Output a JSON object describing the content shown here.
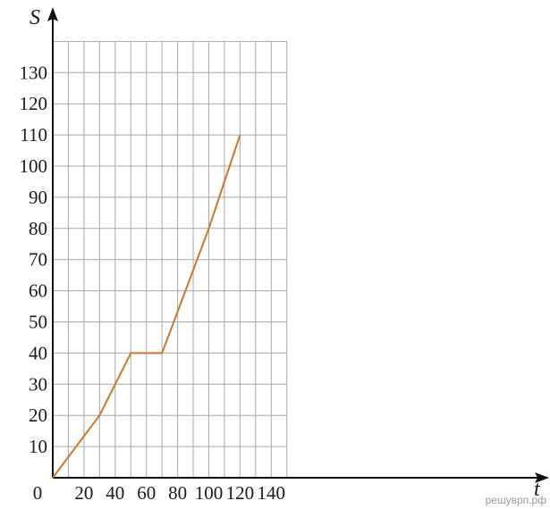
{
  "chart_data": {
    "type": "line",
    "xlabel": "t",
    "ylabel": "S",
    "xlim": [
      0,
      150
    ],
    "ylim": [
      0,
      140
    ],
    "grid": true,
    "x_ticks": [
      {
        "value": 0,
        "label": "0"
      },
      {
        "value": 20,
        "label": "20"
      },
      {
        "value": 40,
        "label": "40"
      },
      {
        "value": 60,
        "label": "60"
      },
      {
        "value": 80,
        "label": "80"
      },
      {
        "value": 100,
        "label": "100"
      },
      {
        "value": 120,
        "label": "120"
      },
      {
        "value": 140,
        "label": "140"
      }
    ],
    "y_ticks": [
      {
        "value": 10,
        "label": "10"
      },
      {
        "value": 20,
        "label": "20"
      },
      {
        "value": 30,
        "label": "30"
      },
      {
        "value": 40,
        "label": "40"
      },
      {
        "value": 50,
        "label": "50"
      },
      {
        "value": 60,
        "label": "60"
      },
      {
        "value": 70,
        "label": "70"
      },
      {
        "value": 80,
        "label": "80"
      },
      {
        "value": 90,
        "label": "90"
      },
      {
        "value": 100,
        "label": "100"
      },
      {
        "value": 110,
        "label": "110"
      },
      {
        "value": 120,
        "label": "120"
      },
      {
        "value": 130,
        "label": "130"
      }
    ],
    "series": [
      {
        "color": "#c8772b",
        "points": [
          {
            "x": 0,
            "y": 0
          },
          {
            "x": 30,
            "y": 20
          },
          {
            "x": 50,
            "y": 40
          },
          {
            "x": 70,
            "y": 40
          },
          {
            "x": 100,
            "y": 80
          },
          {
            "x": 120,
            "y": 110
          }
        ]
      }
    ]
  },
  "watermark": "решуврп.рф"
}
